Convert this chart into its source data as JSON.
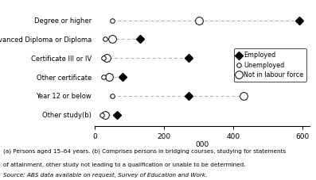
{
  "categories": [
    "Degree or higher",
    "Advanced Diploma or Diploma",
    "Certificate III or IV",
    "Other certificate",
    "Year 12 or below",
    "Other study(b)"
  ],
  "employed": [
    590,
    130,
    270,
    80,
    270,
    65
  ],
  "unemployed": [
    50,
    30,
    25,
    25,
    50,
    20
  ],
  "not_in_labour_force": [
    300,
    50,
    35,
    40,
    430,
    30
  ],
  "xlabel": "000",
  "xlim": [
    0,
    620
  ],
  "xticks": [
    0,
    200,
    400,
    600
  ],
  "footnote1": "(a) Persons aged 15–64 years. (b) Comprises persons in bridging courses, studying for statements",
  "footnote2": "of attainment, other study not leading to a qualification or unable to be determined.",
  "source": "Source: ABS data available on request, Survey of Education and Work.",
  "bg_color": "#ffffff",
  "dash_color": "#aaaaaa"
}
